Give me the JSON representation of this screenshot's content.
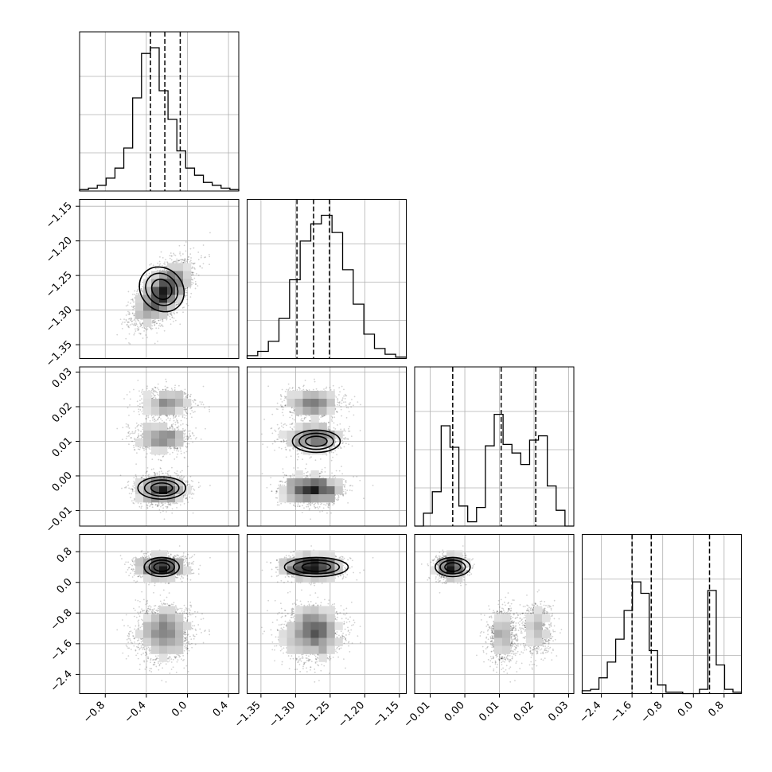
{
  "chart_data": {
    "type": "corner",
    "grid": true,
    "parameters": [
      {
        "index": 0,
        "range": [
          -1.05,
          0.5
        ],
        "ticks": [
          -0.8,
          -0.4,
          0.0,
          0.4
        ],
        "tick_labels": [
          "−0.8",
          "−0.4",
          "0.0",
          "0.4"
        ],
        "quantiles": [
          -0.36,
          -0.22,
          -0.07
        ],
        "hist": [
          0.01,
          0.02,
          0.04,
          0.09,
          0.16,
          0.3,
          0.65,
          0.96,
          1.0,
          0.7,
          0.5,
          0.28,
          0.16,
          0.11,
          0.06,
          0.04,
          0.02,
          0.01
        ]
      },
      {
        "index": 1,
        "range": [
          -1.37,
          -1.14
        ],
        "ticks": [
          -1.35,
          -1.3,
          -1.25,
          -1.2,
          -1.15
        ],
        "tick_labels": [
          "−1.35",
          "−1.30",
          "−1.25",
          "−1.20",
          "−1.15"
        ],
        "quantiles": [
          -1.298,
          -1.274,
          -1.251
        ],
        "hist": [
          0.02,
          0.05,
          0.12,
          0.28,
          0.55,
          0.82,
          0.94,
          1.0,
          0.88,
          0.62,
          0.38,
          0.17,
          0.07,
          0.03,
          0.01
        ]
      },
      {
        "index": 2,
        "range": [
          -0.0145,
          0.0315
        ],
        "ticks": [
          -0.01,
          0.0,
          0.01,
          0.02,
          0.03
        ],
        "tick_labels": [
          "−0.01",
          "0.00",
          "0.01",
          "0.02",
          "0.03"
        ],
        "quantiles": [
          -0.0035,
          0.0105,
          0.0205
        ],
        "hist": [
          0.0,
          0.09,
          0.24,
          0.7,
          0.55,
          0.14,
          0.03,
          0.13,
          0.56,
          0.78,
          0.57,
          0.51,
          0.43,
          0.6,
          0.63,
          0.28,
          0.11,
          0.0
        ]
      },
      {
        "index": 3,
        "range": [
          -2.9,
          1.25
        ],
        "ticks": [
          -2.4,
          -1.6,
          -0.8,
          0.0,
          0.8
        ],
        "tick_labels": [
          "−2.4",
          "−1.6",
          "−0.8",
          "0.0",
          "0.8"
        ],
        "quantiles": [
          -1.6,
          -1.1,
          0.42
        ],
        "hist": [
          0.02,
          0.03,
          0.11,
          0.22,
          0.38,
          0.58,
          0.78,
          0.7,
          0.3,
          0.06,
          0.01,
          0.01,
          0.0,
          0.0,
          0.03,
          0.72,
          0.2,
          0.03,
          0.01
        ]
      }
    ],
    "density_peaks": [
      {
        "row": 1,
        "col": 0,
        "x": -0.25,
        "y": -1.27
      },
      {
        "row": 2,
        "col": 0,
        "x": -0.25,
        "y": -0.0035
      },
      {
        "row": 2,
        "col": 1,
        "x": -1.27,
        "y": 0.01
      },
      {
        "row": 3,
        "col": 0,
        "x": -0.25,
        "y": 0.4
      },
      {
        "row": 3,
        "col": 1,
        "x": -1.27,
        "y": 0.4
      },
      {
        "row": 3,
        "col": 2,
        "x": -0.0035,
        "y": 0.4
      }
    ],
    "modes": [
      {
        "p": -0.25,
        "t": -1.275,
        "u": -0.004,
        "v": 0.4,
        "weight": 0.45
      },
      {
        "p": -0.25,
        "t": -1.274,
        "u": 0.011,
        "v": -1.4,
        "weight": 0.3
      },
      {
        "p": -0.2,
        "t": -1.275,
        "u": 0.021,
        "v": -1.2,
        "weight": 0.25
      }
    ]
  }
}
